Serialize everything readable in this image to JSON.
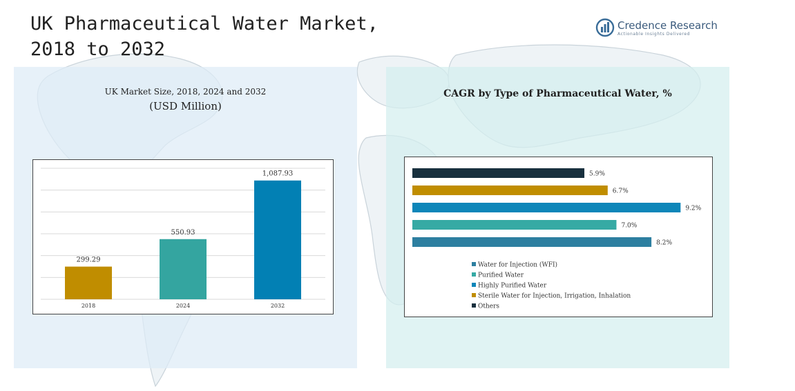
{
  "header": {
    "title": "UK Pharmaceutical Water Market, 2018 to 2032",
    "logo": {
      "name": "Credence Research",
      "tagline": "Actionable Insights Delivered",
      "icon": "bar-chart-logo-icon"
    }
  },
  "colors": {
    "left_panel_bg": "#dcebf7",
    "right_panel_bg": "#d4eeee",
    "bar_2018": "#c08d00",
    "bar_2024": "#34a5a0",
    "bar_2032": "#0280b4",
    "wfi": "#2d7fa0",
    "purified": "#36aaa4",
    "highly_purified": "#0d86b9",
    "sterile": "#c08d00",
    "others": "#18303e"
  },
  "chart_data": [
    {
      "type": "bar",
      "title": "UK Market Size, 2018, 2024 and 2032",
      "subtitle": "(USD Million)",
      "categories": [
        "2018",
        "2024",
        "2032"
      ],
      "values": [
        299.29,
        550.93,
        1087.93
      ],
      "value_labels": [
        "299.29",
        "550.93",
        "1,087.93"
      ],
      "ylim": [
        0,
        1200
      ],
      "grid": true,
      "legend": "none"
    },
    {
      "type": "bar",
      "orientation": "horizontal",
      "title": "CAGR by Type of Pharmaceutical Water, %",
      "categories": [
        "Others",
        "Sterile Water for Injection, Irrigation, Inhalation",
        "Highly Purified Water",
        "Purified Water",
        "Water for Injection (WFI)"
      ],
      "values": [
        5.9,
        6.7,
        9.2,
        7.0,
        8.2
      ],
      "value_labels": [
        "5.9%",
        "6.7%",
        "9.2%",
        "7.0%",
        "8.2%"
      ],
      "xlim": [
        0,
        9.5
      ],
      "legend": "bottom-left",
      "legend_entries": [
        "Water for Injection (WFI)",
        "Purified Water",
        "Highly Purified Water",
        "Sterile Water for Injection, Irrigation, Inhalation",
        "Others"
      ]
    }
  ]
}
